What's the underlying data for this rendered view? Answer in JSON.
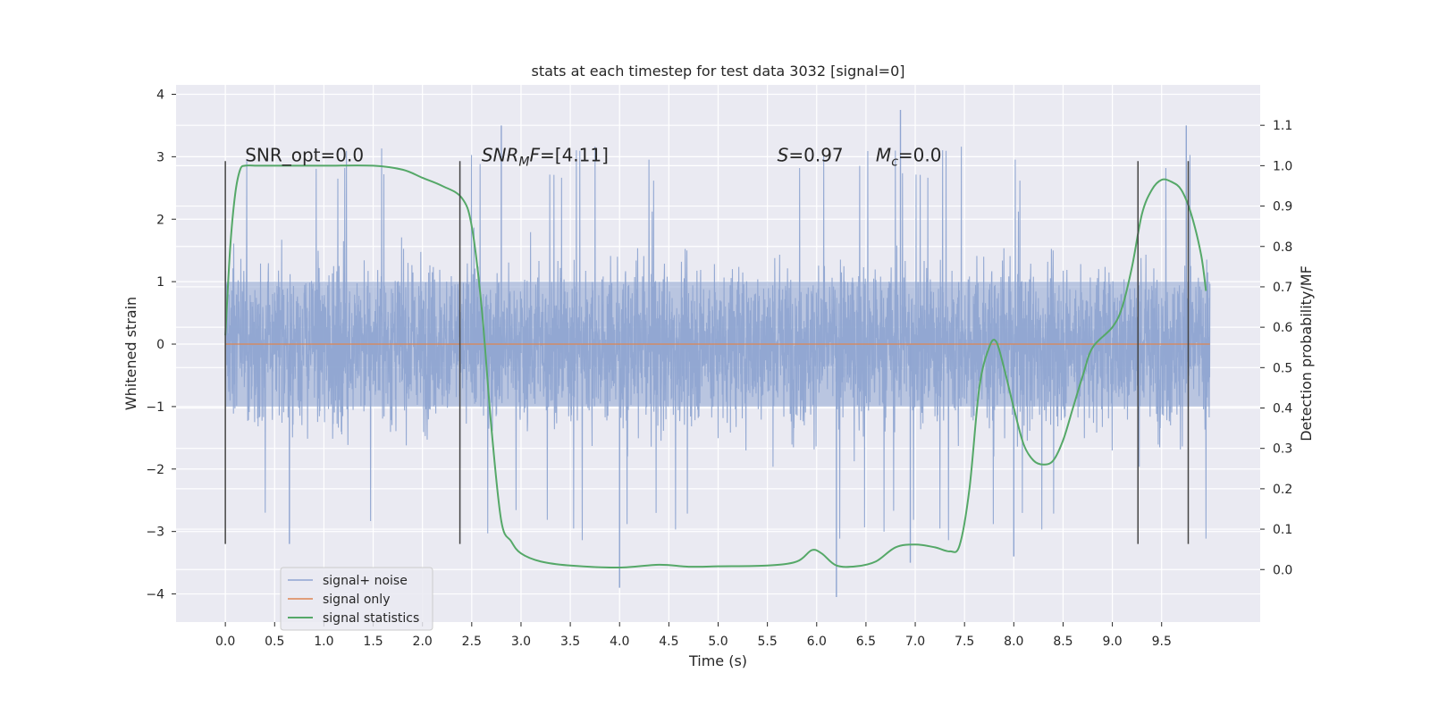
{
  "chart_data": {
    "type": "line",
    "title": "stats at each timestep for test data 3032 [signal=0]",
    "xlabel": "Time (s)",
    "ylabel_left": "Whitened strain",
    "ylabel_right": "Detection probability/MF",
    "xlim": [
      -0.5,
      10.5
    ],
    "ylim_left": [
      -4.45,
      4.15
    ],
    "ylim_right": [
      -0.13,
      1.2
    ],
    "x_ticks": [
      "0.0",
      "0.5",
      "1.0",
      "1.5",
      "2.0",
      "2.5",
      "3.0",
      "3.5",
      "4.0",
      "4.5",
      "5.0",
      "5.5",
      "6.0",
      "6.5",
      "7.0",
      "7.5",
      "8.0",
      "8.5",
      "9.0",
      "9.5"
    ],
    "y_ticks_left": [
      "−4",
      "−3",
      "−2",
      "−1",
      "0",
      "1",
      "2",
      "3",
      "4"
    ],
    "y_ticks_right": [
      "0.0",
      "0.1",
      "0.2",
      "0.3",
      "0.4",
      "0.5",
      "0.6",
      "0.7",
      "0.8",
      "0.9",
      "1.0",
      "1.1"
    ],
    "grid": true,
    "legend_position": "lower-left",
    "annotations": [
      {
        "id": "snr_opt",
        "text": "SNR_opt=0.0",
        "x": 0.2,
        "y": 3.0
      },
      {
        "id": "snr_mf",
        "text": "SNR",
        "sub": "M",
        "tail": "F=[4.11]",
        "italic_prefix": true,
        "x": 2.6,
        "y": 3.0
      },
      {
        "id": "s_val",
        "text": "S",
        "tail": "=0.97",
        "italic_prefix": true,
        "x": 5.6,
        "y": 3.0
      },
      {
        "id": "mc_val",
        "text": "M",
        "sub": "c",
        "tail": "=0.0",
        "italic_prefix": true,
        "x": 6.6,
        "y": 3.0
      }
    ],
    "vertical_markers_x": [
      0.0,
      2.38,
      9.26,
      9.77
    ],
    "series": [
      {
        "name": "signal+ noise",
        "axis": "left",
        "color": "#8fa5d1",
        "t_range": [
          0.0,
          9.99
        ],
        "core_band": [
          -1.0,
          1.0
        ],
        "typical_envelope": [
          -2.4,
          2.4
        ],
        "notable_extremes": [
          {
            "x": 2.8,
            "y": 3.5
          },
          {
            "x": 4.0,
            "y": -3.9
          },
          {
            "x": 6.2,
            "y": -4.05
          },
          {
            "x": 6.85,
            "y": 3.75
          },
          {
            "x": 6.95,
            "y": -3.5
          },
          {
            "x": 9.75,
            "y": 3.5
          },
          {
            "x": 0.65,
            "y": -3.2
          },
          {
            "x": 8.0,
            "y": -3.4
          }
        ]
      },
      {
        "name": "signal only",
        "axis": "left",
        "color": "#dd8452",
        "x": [
          0.0,
          9.99
        ],
        "y": [
          0.0,
          0.0
        ]
      },
      {
        "name": "signal statistics",
        "axis": "right",
        "color": "#55a868",
        "x": [
          0.0,
          0.05,
          0.1,
          0.15,
          0.2,
          0.3,
          0.5,
          1.0,
          1.5,
          1.8,
          2.0,
          2.2,
          2.4,
          2.5,
          2.6,
          2.7,
          2.8,
          2.9,
          3.0,
          3.2,
          3.5,
          4.0,
          4.4,
          4.7,
          5.0,
          5.5,
          5.8,
          5.95,
          6.05,
          6.2,
          6.4,
          6.6,
          6.8,
          7.0,
          7.2,
          7.35,
          7.45,
          7.55,
          7.65,
          7.75,
          7.82,
          7.9,
          8.0,
          8.1,
          8.2,
          8.3,
          8.4,
          8.5,
          8.6,
          8.7,
          8.8,
          9.0,
          9.1,
          9.2,
          9.3,
          9.4,
          9.5,
          9.6,
          9.7,
          9.8,
          9.9,
          9.95
        ],
        "y": [
          0.58,
          0.8,
          0.93,
          0.99,
          1.0,
          1.0,
          1.0,
          1.0,
          1.0,
          0.99,
          0.97,
          0.95,
          0.92,
          0.85,
          0.65,
          0.35,
          0.12,
          0.07,
          0.04,
          0.02,
          0.01,
          0.005,
          0.012,
          0.007,
          0.008,
          0.01,
          0.02,
          0.048,
          0.04,
          0.01,
          0.008,
          0.02,
          0.055,
          0.062,
          0.055,
          0.045,
          0.06,
          0.2,
          0.45,
          0.55,
          0.565,
          0.5,
          0.4,
          0.31,
          0.27,
          0.26,
          0.27,
          0.32,
          0.4,
          0.48,
          0.55,
          0.6,
          0.65,
          0.75,
          0.88,
          0.94,
          0.965,
          0.96,
          0.94,
          0.88,
          0.78,
          0.69
        ]
      }
    ]
  }
}
